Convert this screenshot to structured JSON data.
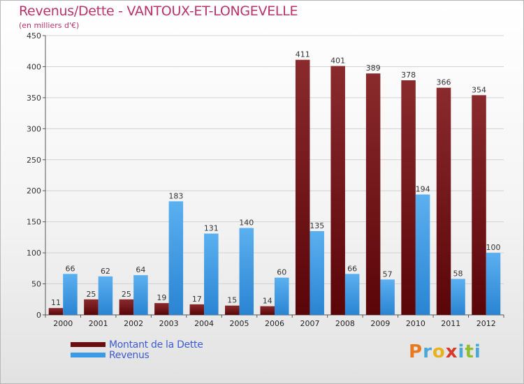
{
  "header": {
    "title": "Revenus/Dette - VANTOUX-ET-LONGEVELLE",
    "subtitle": "(en milliers d'€)"
  },
  "chart_data": {
    "type": "bar",
    "title": "Revenus/Dette - VANTOUX-ET-LONGEVELLE",
    "subtitle": "(en milliers d'€)",
    "xlabel": "",
    "ylabel": "",
    "categories": [
      "2000",
      "2001",
      "2002",
      "2003",
      "2004",
      "2005",
      "2006",
      "2007",
      "2008",
      "2009",
      "2010",
      "2011",
      "2012"
    ],
    "series": [
      {
        "name": "Montant de la Dette",
        "values": [
          11,
          25,
          25,
          19,
          17,
          15,
          14,
          411,
          401,
          389,
          378,
          366,
          354
        ],
        "color": "#7a1518"
      },
      {
        "name": "Revenus",
        "values": [
          66,
          62,
          64,
          183,
          131,
          140,
          60,
          135,
          66,
          57,
          194,
          58,
          100
        ],
        "color": "#3d9be6"
      }
    ],
    "ylim": [
      0,
      450
    ],
    "yticks": [
      0,
      50,
      100,
      150,
      200,
      250,
      300,
      350,
      400,
      450
    ],
    "grid": true,
    "legend": "bottom-left"
  },
  "legend": {
    "items": [
      {
        "label": "Montant de la Dette",
        "color": "#6b0d10"
      },
      {
        "label": "Revenus",
        "color": "#3d9be6"
      }
    ]
  },
  "logo": {
    "letters": [
      "P",
      "r",
      "o",
      "x",
      "i",
      "t",
      "i"
    ],
    "colors": [
      "#e8791e",
      "#4aa8d8",
      "#e8b21e",
      "#d63a2a",
      "#4aa8d8",
      "#8fbf2e",
      "#4aa8d8"
    ]
  }
}
